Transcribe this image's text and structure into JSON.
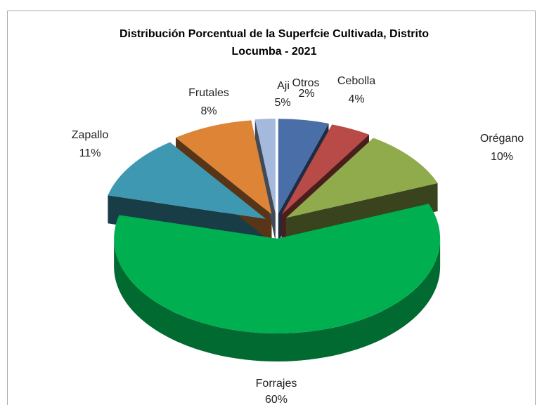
{
  "chart_data": {
    "type": "pie",
    "title": "Distribución Porcentual de la Superfcie Cultivada, Distrito Locumba  - 2021",
    "categories": [
      "Aji",
      "Cebolla",
      "Orégano",
      "Forrajes",
      "Zapallo",
      "Frutales",
      "Otros"
    ],
    "values": [
      5,
      4,
      10,
      60,
      11,
      8,
      2
    ],
    "value_labels": [
      "5%",
      "4%",
      "10%",
      "60%",
      "11%",
      "8%",
      "2%"
    ],
    "colors": [
      "#4a6fa8",
      "#b84a47",
      "#8fab4c",
      "#00b050",
      "#3f98b1",
      "#dd8437",
      "#a5b9dd"
    ]
  }
}
